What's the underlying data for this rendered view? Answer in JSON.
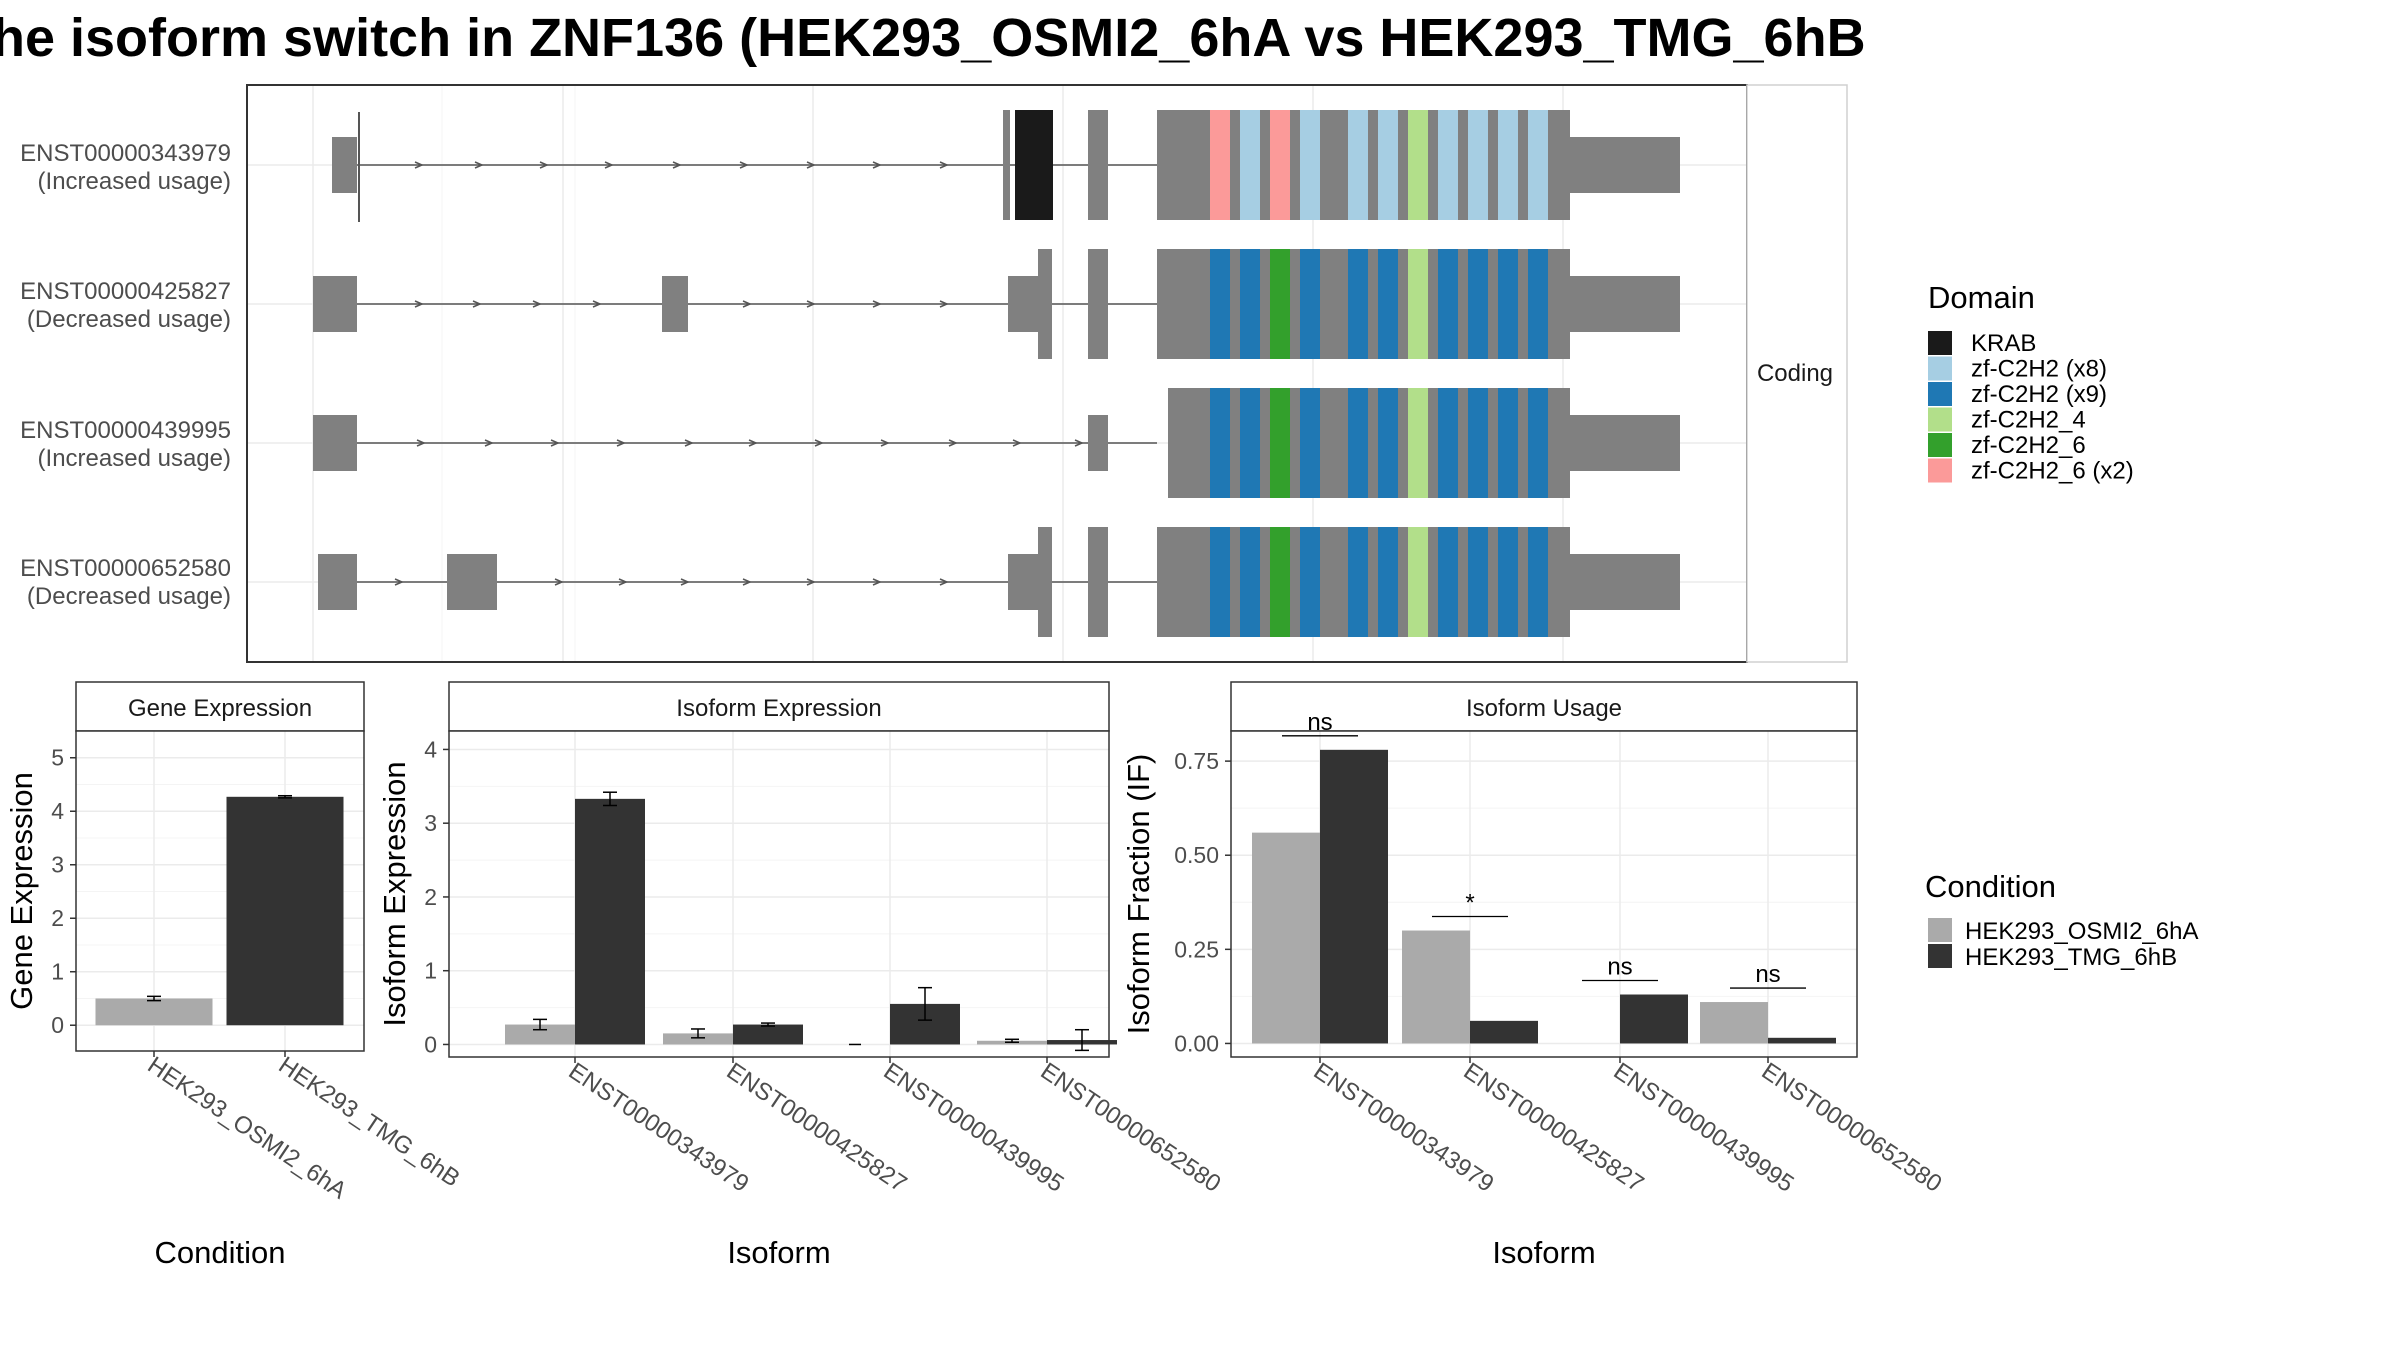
{
  "figure_title": "he isoform switch in ZNF136 (HEK293_OSMI2_6hA vs HEK293_TMG_6hB",
  "colors": {
    "exon": "#808080",
    "intron": "#555555",
    "osmi": "#AAAAAA",
    "tmg": "#333333",
    "grid": "#EBEBEB"
  },
  "chart_data": [
    {
      "type": "diagram",
      "strip_label": "Coding",
      "transcripts": [
        {
          "id": "ENST00000343979",
          "usage": "(Increased usage)"
        },
        {
          "id": "ENST00000425827",
          "usage": "(Decreased usage)"
        },
        {
          "id": "ENST00000439995",
          "usage": "(Increased usage)"
        },
        {
          "id": "ENST00000652580",
          "usage": "(Decreased usage)"
        }
      ],
      "legend": {
        "title": "Domain",
        "entries": [
          {
            "label": "KRAB",
            "color": "#1A1A1A"
          },
          {
            "label": "zf-C2H2 (x8)",
            "color": "#A6CEE3"
          },
          {
            "label": "zf-C2H2 (x9)",
            "color": "#1F78B4"
          },
          {
            "label": "zf-C2H2_4",
            "color": "#B2DF8A"
          },
          {
            "label": "zf-C2H2_6",
            "color": "#33A02C"
          },
          {
            "label": "zf-C2H2_6 (x2)",
            "color": "#FB9A99"
          }
        ]
      }
    },
    {
      "type": "bar",
      "title": "Gene Expression",
      "xlabel": "Condition",
      "ylabel": "Gene Expression",
      "ylim": [
        0,
        5.2
      ],
      "yticks": [
        0,
        1,
        2,
        3,
        4,
        5
      ],
      "categories": [
        "HEK293_OSMI2_6hA",
        "HEK293_TMG_6hB"
      ],
      "values": [
        0.5,
        4.27
      ],
      "errors": [
        0.04,
        0.02
      ]
    },
    {
      "type": "bar",
      "title": "Isoform Expression",
      "xlabel": "Isoform",
      "ylabel": "Isoform Expression",
      "ylim": [
        0,
        4.2
      ],
      "yticks": [
        0,
        1,
        2,
        3,
        4
      ],
      "categories": [
        "ENST00000343979",
        "ENST00000425827",
        "ENST00000439995",
        "ENST00000652580"
      ],
      "series": [
        {
          "name": "HEK293_OSMI2_6hA",
          "values": [
            0.27,
            0.15,
            0.0,
            0.05
          ],
          "errors": [
            0.07,
            0.06,
            0.0,
            0.02
          ]
        },
        {
          "name": "HEK293_TMG_6hB",
          "values": [
            3.33,
            0.27,
            0.55,
            0.06
          ],
          "errors": [
            0.09,
            0.02,
            0.22,
            0.14
          ]
        }
      ]
    },
    {
      "type": "bar",
      "title": "Isoform Usage",
      "xlabel": "Isoform",
      "ylabel": "Isoform Fraction (IF)",
      "ylim": [
        0,
        0.8
      ],
      "yticks": [
        "0.00",
        "0.25",
        "0.50",
        "0.75"
      ],
      "categories": [
        "ENST00000343979",
        "ENST00000425827",
        "ENST00000439995",
        "ENST00000652580"
      ],
      "series": [
        {
          "name": "HEK293_OSMI2_6hA",
          "values": [
            0.56,
            0.3,
            0.0,
            0.11
          ]
        },
        {
          "name": "HEK293_TMG_6hB",
          "values": [
            0.78,
            0.06,
            0.13,
            0.015
          ]
        }
      ],
      "significance": [
        "ns",
        "*",
        "ns",
        "ns"
      ]
    }
  ],
  "condition_legend": {
    "title": "Condition",
    "entries": [
      {
        "label": "HEK293_OSMI2_6hA",
        "color": "#AAAAAA"
      },
      {
        "label": "HEK293_TMG_6hB",
        "color": "#333333"
      }
    ]
  }
}
